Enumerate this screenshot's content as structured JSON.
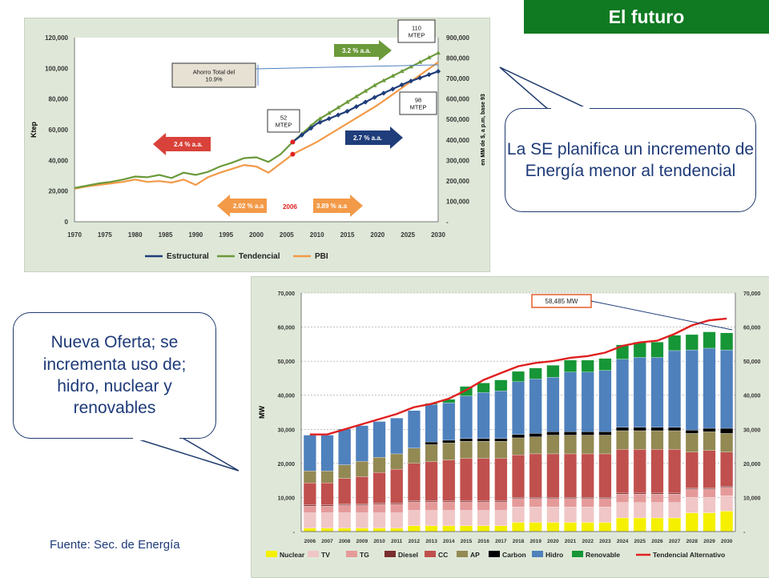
{
  "header": {
    "title": "El futuro"
  },
  "callouts": {
    "top": "La SE planifica un incremento de Energía menor al tendencial",
    "bottom": "Nueva Oferta; se incrementa uso de; hidro, nuclear y renovables"
  },
  "source": "Fuente: Sec. de Energía",
  "chart_data": [
    {
      "type": "line",
      "ylabel": "Ktep",
      "ylabel_right": "en MM de $, a p.m, base 93",
      "ylim": [
        0,
        120000
      ],
      "ylim_right": [
        0,
        900000
      ],
      "yticks": [
        "0",
        "20,000",
        "40,000",
        "60,000",
        "80,000",
        "100,000",
        "120,000"
      ],
      "yticks_right": [
        "-",
        "100,000",
        "200,000",
        "300,000",
        "400,000",
        "500,000",
        "600,000",
        "700,000",
        "800,000",
        "900,000"
      ],
      "xticks": [
        "1970",
        "1975",
        "1980",
        "1985",
        "1990",
        "1995",
        "2000",
        "2005",
        "2010",
        "2015",
        "2020",
        "2025",
        "2030"
      ],
      "series": [
        {
          "name": "Estructural",
          "color": "#1f3d7a",
          "x": [
            2006,
            2010,
            2015,
            2020,
            2025,
            2030
          ],
          "values": [
            52000,
            64000,
            72000,
            82000,
            91000,
            98000
          ]
        },
        {
          "name": "Tendencial",
          "color": "#6b9a3a",
          "x": [
            1970,
            1972,
            1974,
            1976,
            1978,
            1980,
            1982,
            1984,
            1986,
            1988,
            1990,
            1992,
            1994,
            1996,
            1998,
            2000,
            2002,
            2004,
            2006,
            2010,
            2015,
            2020,
            2025,
            2030
          ],
          "values": [
            22000,
            23500,
            25000,
            26000,
            27500,
            29500,
            29000,
            30500,
            28500,
            32000,
            30500,
            32500,
            36000,
            38500,
            41500,
            42000,
            39000,
            44000,
            52000,
            66000,
            78000,
            90000,
            100000,
            110000
          ]
        },
        {
          "name": "PBI",
          "color": "#f39a48",
          "x": [
            1970,
            1972,
            1974,
            1976,
            1978,
            1980,
            1982,
            1984,
            1986,
            1988,
            1990,
            1992,
            1994,
            1996,
            1998,
            2000,
            2002,
            2004,
            2006,
            2010,
            2015,
            2020,
            2025,
            2030
          ],
          "values": [
            21500,
            23000,
            24000,
            25000,
            26000,
            27500,
            26000,
            26500,
            25500,
            27500,
            24000,
            29000,
            32000,
            34500,
            37000,
            36000,
            32000,
            38000,
            44000,
            52000,
            64000,
            76000,
            90000,
            104000
          ]
        }
      ],
      "annotations": {
        "arrow_32": "3.2 % a.a.",
        "arrow_24": "2.4 % a.a.",
        "arrow_27": "2.7 % a.a.",
        "arrow_202": "2.02 % a.a",
        "arrow_389": "3.89 % a.a",
        "year_2006": "2006",
        "box_ahorro": "Ahorro Total del 10.9%",
        "box_110": "110 MTEP",
        "box_52": "52 MTEP",
        "box_98": "98 MTEP"
      }
    },
    {
      "type": "bar",
      "ylabel": "MW",
      "ylim": [
        0,
        70000
      ],
      "yticks": [
        "-",
        "10,000",
        "20,000",
        "30,000",
        "40,000",
        "50,000",
        "60,000",
        "70,000"
      ],
      "categories": [
        "2006",
        "2007",
        "2008",
        "2009",
        "2010",
        "2011",
        "2012",
        "2013",
        "2014",
        "2015",
        "2016",
        "2017",
        "2018",
        "2019",
        "2020",
        "2021",
        "2022",
        "2023",
        "2024",
        "2025",
        "2026",
        "2027",
        "2028",
        "2029",
        "2030"
      ],
      "series": [
        {
          "name": "Nuclear",
          "color": "#f5f000",
          "values": [
            1000,
            1000,
            1000,
            1000,
            1000,
            1000,
            1700,
            1700,
            1700,
            1700,
            1700,
            1700,
            2700,
            2700,
            2700,
            2700,
            2700,
            2700,
            4000,
            4000,
            4000,
            4000,
            5500,
            5500,
            6000
          ]
        },
        {
          "name": "TV",
          "color": "#f0c6c6",
          "values": [
            4500,
            4500,
            4500,
            4500,
            4500,
            4500,
            4500,
            4500,
            4500,
            4500,
            4500,
            4500,
            4500,
            4500,
            4500,
            4500,
            4500,
            4500,
            4500,
            4500,
            4500,
            4500,
            4500,
            4500,
            4500
          ]
        },
        {
          "name": "TG",
          "color": "#e59a9a",
          "values": [
            2000,
            2000,
            2300,
            2300,
            2500,
            2500,
            2500,
            2500,
            2500,
            2500,
            2500,
            2500,
            2500,
            2500,
            2500,
            2500,
            2500,
            2500,
            2500,
            2500,
            2500,
            2500,
            2500,
            2500,
            2500
          ]
        },
        {
          "name": "Diesel",
          "color": "#7a2e2e",
          "values": [
            300,
            300,
            300,
            300,
            300,
            300,
            300,
            300,
            300,
            300,
            300,
            300,
            300,
            300,
            300,
            300,
            300,
            300,
            300,
            300,
            300,
            300,
            300,
            300,
            300
          ]
        },
        {
          "name": "CC",
          "color": "#c0504d",
          "values": [
            6500,
            6500,
            7500,
            8000,
            9000,
            10000,
            11000,
            11500,
            12000,
            12500,
            12500,
            12500,
            12500,
            12800,
            12800,
            12800,
            12800,
            12800,
            12800,
            12800,
            12800,
            12800,
            10500,
            11000,
            10000
          ]
        },
        {
          "name": "AP",
          "color": "#938953",
          "values": [
            3500,
            3500,
            4000,
            4500,
            4500,
            4500,
            4500,
            5000,
            5000,
            5000,
            5000,
            5000,
            5000,
            5000,
            5500,
            5500,
            5500,
            5500,
            5500,
            5500,
            5500,
            5500,
            5500,
            5500,
            5500
          ]
        },
        {
          "name": "Carbon",
          "color": "#000000",
          "values": [
            0,
            0,
            0,
            0,
            0,
            0,
            0,
            800,
            800,
            800,
            800,
            800,
            1000,
            1000,
            1000,
            1000,
            1000,
            1000,
            1000,
            1000,
            1000,
            1000,
            1000,
            1000,
            1500
          ]
        },
        {
          "name": "Hidro",
          "color": "#4f81bd",
          "values": [
            10500,
            10500,
            10500,
            10500,
            10500,
            10500,
            11000,
            11000,
            11000,
            12500,
            13500,
            14000,
            15500,
            16000,
            16000,
            17500,
            17500,
            18000,
            20000,
            20500,
            20500,
            22500,
            23500,
            23500,
            23000
          ]
        },
        {
          "name": "Renovable",
          "color": "#169636",
          "values": [
            0,
            0,
            0,
            0,
            0,
            0,
            0,
            300,
            1000,
            2800,
            2800,
            3200,
            3000,
            3200,
            3500,
            3500,
            3500,
            3500,
            4200,
            4500,
            4500,
            4500,
            4500,
            4800,
            5000
          ]
        }
      ],
      "line_series": {
        "name": "Tendencial Alternativo",
        "color": "#e02020",
        "values": [
          28500,
          28500,
          30000,
          31500,
          33000,
          34500,
          36500,
          37500,
          39000,
          41500,
          44500,
          46500,
          48500,
          49500,
          50000,
          51000,
          51500,
          52500,
          54500,
          55500,
          56000,
          58000,
          60500,
          62000,
          62500
        ]
      },
      "annotations": {
        "box": "58,485 MW"
      }
    }
  ]
}
